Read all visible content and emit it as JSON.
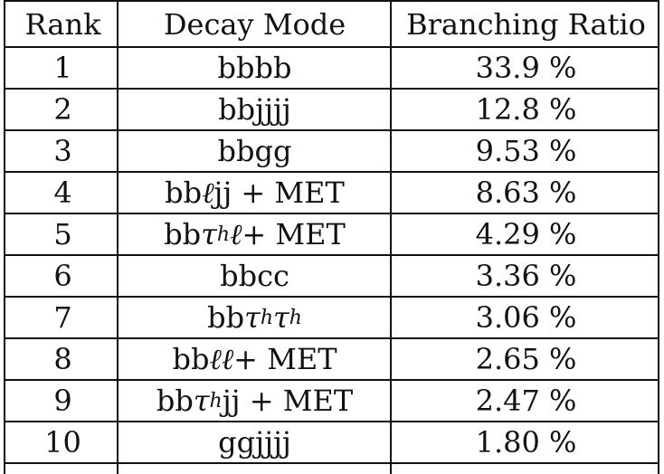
{
  "table": {
    "headers": {
      "rank": "Rank",
      "mode": "Decay Mode",
      "ratio": "Branching Ratio"
    },
    "rows": [
      {
        "rank": "1",
        "mode": "bbbb",
        "ratio": "33.9 %"
      },
      {
        "rank": "2",
        "mode": "bbjjjj",
        "ratio": "12.8 %"
      },
      {
        "rank": "3",
        "mode": "bbgg",
        "ratio": "9.53 %"
      },
      {
        "rank": "4",
        "mode": "bbℓjj + MET",
        "ratio": "8.63 %"
      },
      {
        "rank": "5",
        "mode": "bbτhℓ + MET",
        "ratio": "4.29 %"
      },
      {
        "rank": "6",
        "mode": "bbcc",
        "ratio": "3.36 %"
      },
      {
        "rank": "7",
        "mode": "bbτhτh",
        "ratio": "3.06 %"
      },
      {
        "rank": "8",
        "mode": "bbℓℓ + MET",
        "ratio": "2.65 %"
      },
      {
        "rank": "9",
        "mode": "bbτhjj + MET",
        "ratio": "2.47 %"
      },
      {
        "rank": "10",
        "mode": "ggjjjj",
        "ratio": "1.80 %"
      }
    ]
  }
}
